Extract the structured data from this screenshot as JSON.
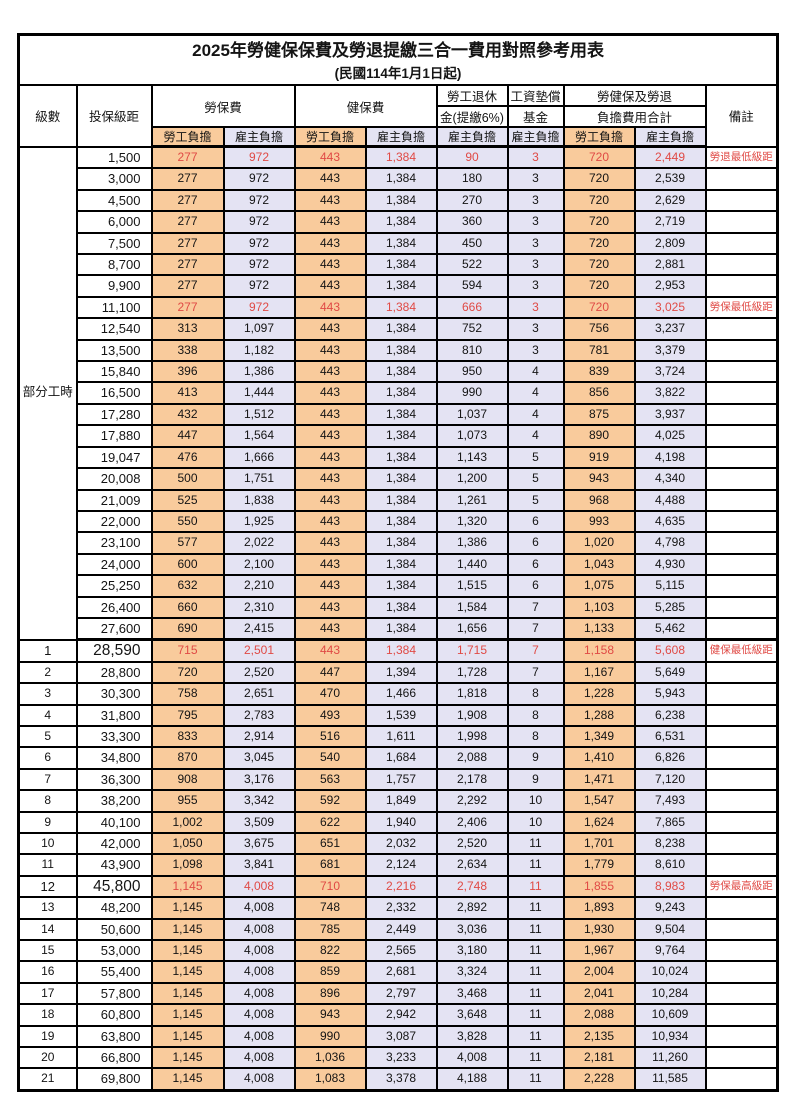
{
  "title": "2025年勞健保保費及勞退提繳三合一費用對照參考用表",
  "subtitle": "(民國114年1月1日起)",
  "header": {
    "level": "級數",
    "bracket": "投保級距",
    "labor": "勞保費",
    "health": "健保費",
    "pension1": "勞工退休",
    "pension2": "金(提繳6%)",
    "fund1": "工資墊償",
    "fund2": "基金",
    "total1": "勞健保及勞退",
    "total2": "負擔費用合計",
    "employee": "勞工負擔",
    "employer": "雇主負擔",
    "note": "備註"
  },
  "part_time_label": "部分工時",
  "part_time_rowspan": 23,
  "colors": {
    "employee_fill": "#f9cb9c",
    "employer_fill": "#e4e3f3",
    "highlight_red": "#e04a45",
    "border": "#000000"
  },
  "rows": [
    {
      "level": "",
      "bracket": "1,500",
      "values": [
        "277",
        "972",
        "443",
        "1,384",
        "90",
        "3",
        "720",
        "2,449"
      ],
      "note": "勞退最低級距",
      "red": true,
      "big": false,
      "section_end": false
    },
    {
      "level": "",
      "bracket": "3,000",
      "values": [
        "277",
        "972",
        "443",
        "1,384",
        "180",
        "3",
        "720",
        "2,539"
      ],
      "note": "",
      "red": false,
      "big": false,
      "section_end": false
    },
    {
      "level": "",
      "bracket": "4,500",
      "values": [
        "277",
        "972",
        "443",
        "1,384",
        "270",
        "3",
        "720",
        "2,629"
      ],
      "note": "",
      "red": false,
      "big": false,
      "section_end": false
    },
    {
      "level": "",
      "bracket": "6,000",
      "values": [
        "277",
        "972",
        "443",
        "1,384",
        "360",
        "3",
        "720",
        "2,719"
      ],
      "note": "",
      "red": false,
      "big": false,
      "section_end": false
    },
    {
      "level": "",
      "bracket": "7,500",
      "values": [
        "277",
        "972",
        "443",
        "1,384",
        "450",
        "3",
        "720",
        "2,809"
      ],
      "note": "",
      "red": false,
      "big": false,
      "section_end": false
    },
    {
      "level": "",
      "bracket": "8,700",
      "values": [
        "277",
        "972",
        "443",
        "1,384",
        "522",
        "3",
        "720",
        "2,881"
      ],
      "note": "",
      "red": false,
      "big": false,
      "section_end": false
    },
    {
      "level": "",
      "bracket": "9,900",
      "values": [
        "277",
        "972",
        "443",
        "1,384",
        "594",
        "3",
        "720",
        "2,953"
      ],
      "note": "",
      "red": false,
      "big": false,
      "section_end": false
    },
    {
      "level": "",
      "bracket": "11,100",
      "values": [
        "277",
        "972",
        "443",
        "1,384",
        "666",
        "3",
        "720",
        "3,025"
      ],
      "note": "勞保最低級距",
      "red": true,
      "big": false,
      "section_end": false
    },
    {
      "level": "",
      "bracket": "12,540",
      "values": [
        "313",
        "1,097",
        "443",
        "1,384",
        "752",
        "3",
        "756",
        "3,237"
      ],
      "note": "",
      "red": false,
      "big": false,
      "section_end": false
    },
    {
      "level": "",
      "bracket": "13,500",
      "values": [
        "338",
        "1,182",
        "443",
        "1,384",
        "810",
        "3",
        "781",
        "3,379"
      ],
      "note": "",
      "red": false,
      "big": false,
      "section_end": false
    },
    {
      "level": "",
      "bracket": "15,840",
      "values": [
        "396",
        "1,386",
        "443",
        "1,384",
        "950",
        "4",
        "839",
        "3,724"
      ],
      "note": "",
      "red": false,
      "big": false,
      "section_end": false
    },
    {
      "level": "",
      "bracket": "16,500",
      "values": [
        "413",
        "1,444",
        "443",
        "1,384",
        "990",
        "4",
        "856",
        "3,822"
      ],
      "note": "",
      "red": false,
      "big": false,
      "section_end": false
    },
    {
      "level": "",
      "bracket": "17,280",
      "values": [
        "432",
        "1,512",
        "443",
        "1,384",
        "1,037",
        "4",
        "875",
        "3,937"
      ],
      "note": "",
      "red": false,
      "big": false,
      "section_end": false
    },
    {
      "level": "",
      "bracket": "17,880",
      "values": [
        "447",
        "1,564",
        "443",
        "1,384",
        "1,073",
        "4",
        "890",
        "4,025"
      ],
      "note": "",
      "red": false,
      "big": false,
      "section_end": false
    },
    {
      "level": "",
      "bracket": "19,047",
      "values": [
        "476",
        "1,666",
        "443",
        "1,384",
        "1,143",
        "5",
        "919",
        "4,198"
      ],
      "note": "",
      "red": false,
      "big": false,
      "section_end": false
    },
    {
      "level": "",
      "bracket": "20,008",
      "values": [
        "500",
        "1,751",
        "443",
        "1,384",
        "1,200",
        "5",
        "943",
        "4,340"
      ],
      "note": "",
      "red": false,
      "big": false,
      "section_end": false
    },
    {
      "level": "",
      "bracket": "21,009",
      "values": [
        "525",
        "1,838",
        "443",
        "1,384",
        "1,261",
        "5",
        "968",
        "4,488"
      ],
      "note": "",
      "red": false,
      "big": false,
      "section_end": false
    },
    {
      "level": "",
      "bracket": "22,000",
      "values": [
        "550",
        "1,925",
        "443",
        "1,384",
        "1,320",
        "6",
        "993",
        "4,635"
      ],
      "note": "",
      "red": false,
      "big": false,
      "section_end": false
    },
    {
      "level": "",
      "bracket": "23,100",
      "values": [
        "577",
        "2,022",
        "443",
        "1,384",
        "1,386",
        "6",
        "1,020",
        "4,798"
      ],
      "note": "",
      "red": false,
      "big": false,
      "section_end": false
    },
    {
      "level": "",
      "bracket": "24,000",
      "values": [
        "600",
        "2,100",
        "443",
        "1,384",
        "1,440",
        "6",
        "1,043",
        "4,930"
      ],
      "note": "",
      "red": false,
      "big": false,
      "section_end": false
    },
    {
      "level": "",
      "bracket": "25,250",
      "values": [
        "632",
        "2,210",
        "443",
        "1,384",
        "1,515",
        "6",
        "1,075",
        "5,115"
      ],
      "note": "",
      "red": false,
      "big": false,
      "section_end": false
    },
    {
      "level": "",
      "bracket": "26,400",
      "values": [
        "660",
        "2,310",
        "443",
        "1,384",
        "1,584",
        "7",
        "1,103",
        "5,285"
      ],
      "note": "",
      "red": false,
      "big": false,
      "section_end": false
    },
    {
      "level": "",
      "bracket": "27,600",
      "values": [
        "690",
        "2,415",
        "443",
        "1,384",
        "1,656",
        "7",
        "1,133",
        "5,462"
      ],
      "note": "",
      "red": false,
      "big": false,
      "section_end": true
    },
    {
      "level": "1",
      "bracket": "28,590",
      "values": [
        "715",
        "2,501",
        "443",
        "1,384",
        "1,715",
        "7",
        "1,158",
        "5,608"
      ],
      "note": "健保最低級距",
      "red": true,
      "big": true,
      "section_end": false
    },
    {
      "level": "2",
      "bracket": "28,800",
      "values": [
        "720",
        "2,520",
        "447",
        "1,394",
        "1,728",
        "7",
        "1,167",
        "5,649"
      ],
      "note": "",
      "red": false,
      "big": false,
      "section_end": false
    },
    {
      "level": "3",
      "bracket": "30,300",
      "values": [
        "758",
        "2,651",
        "470",
        "1,466",
        "1,818",
        "8",
        "1,228",
        "5,943"
      ],
      "note": "",
      "red": false,
      "big": false,
      "section_end": false
    },
    {
      "level": "4",
      "bracket": "31,800",
      "values": [
        "795",
        "2,783",
        "493",
        "1,539",
        "1,908",
        "8",
        "1,288",
        "6,238"
      ],
      "note": "",
      "red": false,
      "big": false,
      "section_end": false
    },
    {
      "level": "5",
      "bracket": "33,300",
      "values": [
        "833",
        "2,914",
        "516",
        "1,611",
        "1,998",
        "8",
        "1,349",
        "6,531"
      ],
      "note": "",
      "red": false,
      "big": false,
      "section_end": false
    },
    {
      "level": "6",
      "bracket": "34,800",
      "values": [
        "870",
        "3,045",
        "540",
        "1,684",
        "2,088",
        "9",
        "1,410",
        "6,826"
      ],
      "note": "",
      "red": false,
      "big": false,
      "section_end": false
    },
    {
      "level": "7",
      "bracket": "36,300",
      "values": [
        "908",
        "3,176",
        "563",
        "1,757",
        "2,178",
        "9",
        "1,471",
        "7,120"
      ],
      "note": "",
      "red": false,
      "big": false,
      "section_end": false
    },
    {
      "level": "8",
      "bracket": "38,200",
      "values": [
        "955",
        "3,342",
        "592",
        "1,849",
        "2,292",
        "10",
        "1,547",
        "7,493"
      ],
      "note": "",
      "red": false,
      "big": false,
      "section_end": false
    },
    {
      "level": "9",
      "bracket": "40,100",
      "values": [
        "1,002",
        "3,509",
        "622",
        "1,940",
        "2,406",
        "10",
        "1,624",
        "7,865"
      ],
      "note": "",
      "red": false,
      "big": false,
      "section_end": false
    },
    {
      "level": "10",
      "bracket": "42,000",
      "values": [
        "1,050",
        "3,675",
        "651",
        "2,032",
        "2,520",
        "11",
        "1,701",
        "8,238"
      ],
      "note": "",
      "red": false,
      "big": false,
      "section_end": false
    },
    {
      "level": "11",
      "bracket": "43,900",
      "values": [
        "1,098",
        "3,841",
        "681",
        "2,124",
        "2,634",
        "11",
        "1,779",
        "8,610"
      ],
      "note": "",
      "red": false,
      "big": false,
      "section_end": false
    },
    {
      "level": "12",
      "bracket": "45,800",
      "values": [
        "1,145",
        "4,008",
        "710",
        "2,216",
        "2,748",
        "11",
        "1,855",
        "8,983"
      ],
      "note": "勞保最高級距",
      "red": true,
      "big": true,
      "section_end": false
    },
    {
      "level": "13",
      "bracket": "48,200",
      "values": [
        "1,145",
        "4,008",
        "748",
        "2,332",
        "2,892",
        "11",
        "1,893",
        "9,243"
      ],
      "note": "",
      "red": false,
      "big": false,
      "section_end": false
    },
    {
      "level": "14",
      "bracket": "50,600",
      "values": [
        "1,145",
        "4,008",
        "785",
        "2,449",
        "3,036",
        "11",
        "1,930",
        "9,504"
      ],
      "note": "",
      "red": false,
      "big": false,
      "section_end": false
    },
    {
      "level": "15",
      "bracket": "53,000",
      "values": [
        "1,145",
        "4,008",
        "822",
        "2,565",
        "3,180",
        "11",
        "1,967",
        "9,764"
      ],
      "note": "",
      "red": false,
      "big": false,
      "section_end": false
    },
    {
      "level": "16",
      "bracket": "55,400",
      "values": [
        "1,145",
        "4,008",
        "859",
        "2,681",
        "3,324",
        "11",
        "2,004",
        "10,024"
      ],
      "note": "",
      "red": false,
      "big": false,
      "section_end": false
    },
    {
      "level": "17",
      "bracket": "57,800",
      "values": [
        "1,145",
        "4,008",
        "896",
        "2,797",
        "3,468",
        "11",
        "2,041",
        "10,284"
      ],
      "note": "",
      "red": false,
      "big": false,
      "section_end": false
    },
    {
      "level": "18",
      "bracket": "60,800",
      "values": [
        "1,145",
        "4,008",
        "943",
        "2,942",
        "3,648",
        "11",
        "2,088",
        "10,609"
      ],
      "note": "",
      "red": false,
      "big": false,
      "section_end": false
    },
    {
      "level": "19",
      "bracket": "63,800",
      "values": [
        "1,145",
        "4,008",
        "990",
        "3,087",
        "3,828",
        "11",
        "2,135",
        "10,934"
      ],
      "note": "",
      "red": false,
      "big": false,
      "section_end": false
    },
    {
      "level": "20",
      "bracket": "66,800",
      "values": [
        "1,145",
        "4,008",
        "1,036",
        "3,233",
        "4,008",
        "11",
        "2,181",
        "11,260"
      ],
      "note": "",
      "red": false,
      "big": false,
      "section_end": false
    },
    {
      "level": "21",
      "bracket": "69,800",
      "values": [
        "1,145",
        "4,008",
        "1,083",
        "3,378",
        "4,188",
        "11",
        "2,228",
        "11,585"
      ],
      "note": "",
      "red": false,
      "big": false,
      "section_end": false
    }
  ]
}
